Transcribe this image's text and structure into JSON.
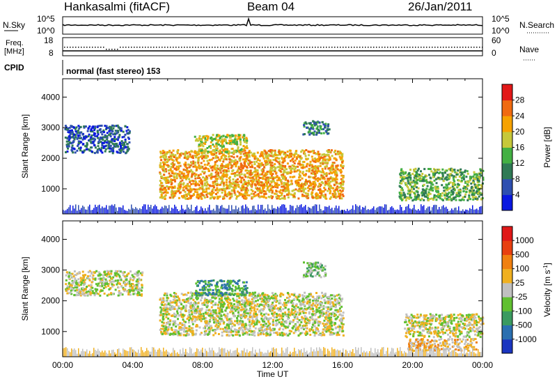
{
  "header": {
    "radar": "Hankasalmi (fitACF)",
    "beam": "Beam 04",
    "date": "26/Jan/2011"
  },
  "strips": {
    "nsky_label": "N.Sky",
    "nsky_ticks": [
      "10^5",
      "10^0"
    ],
    "nsearch_label": "N.Search",
    "nsearch_ticks": [
      "10^5",
      "10^0"
    ],
    "freq_label_line1": "Freq.",
    "freq_label_line2": "[MHz]",
    "freq_ticks": [
      "18",
      "8"
    ],
    "nave_label": "Nave",
    "nave_ticks": [
      "60",
      "0"
    ],
    "cpid_label": "CPID",
    "cpid_value": "normal (fast stereo) 153"
  },
  "chart_data": [
    {
      "type": "heatmap",
      "name": "power-panel",
      "ylabel": "Slant Range [km]",
      "yticks": [
        1000,
        2000,
        3000,
        4000
      ],
      "ylim": [
        180,
        4600
      ],
      "xlim": [
        0,
        24
      ],
      "colorbar": {
        "label": "Power [dB]",
        "ticks": [
          "4",
          "8",
          "12",
          "16",
          "20",
          "24",
          "28"
        ],
        "colors": [
          "#0a18e0",
          "#2e4fb0",
          "#2f7a55",
          "#43b043",
          "#c6c83a",
          "#f6a200",
          "#f06a10",
          "#e21818"
        ]
      },
      "regions": [
        {
          "t0": 0.1,
          "t1": 3.8,
          "r0": 2200,
          "r1": 3100,
          "level": 1
        },
        {
          "t0": 5.5,
          "t1": 16.0,
          "r0": 700,
          "r1": 2300,
          "level": 5
        },
        {
          "t0": 7.5,
          "t1": 10.5,
          "r0": 2200,
          "r1": 2800,
          "level": 4
        },
        {
          "t0": 13.7,
          "t1": 15.2,
          "r0": 2800,
          "r1": 3250,
          "level": 2
        },
        {
          "t0": 19.2,
          "t1": 24.0,
          "r0": 650,
          "r1": 1700,
          "level": 3
        }
      ]
    },
    {
      "type": "heatmap",
      "name": "velocity-panel",
      "ylabel": "Slant Range [km]",
      "xlabel": "Time UT",
      "yticks": [
        1000,
        2000,
        3000,
        4000
      ],
      "ylim": [
        180,
        4600
      ],
      "xlim": [
        0,
        24
      ],
      "xticks": [
        "00:00",
        "04:00",
        "08:00",
        "12:00",
        "16:00",
        "20:00",
        "00:00"
      ],
      "colorbar": {
        "label": "Velocity [m s",
        "label_sup": "-1",
        "label_end": "]",
        "ticks": [
          "1000",
          "500",
          "100",
          "25",
          "-25",
          "-100",
          "-500",
          "-1000"
        ],
        "colors": [
          "#1a35c0",
          "#2a6fb0",
          "#3a9a60",
          "#60c030",
          "#c0c0c0",
          "#f0b020",
          "#f08010",
          "#e84010",
          "#e01818"
        ]
      },
      "regions": [
        {
          "t0": 0.1,
          "t1": 4.5,
          "r0": 2200,
          "r1": 3000,
          "level": 4
        },
        {
          "t0": 5.5,
          "t1": 16.0,
          "r0": 900,
          "r1": 2300,
          "level": 4
        },
        {
          "t0": 7.5,
          "t1": 10.5,
          "r0": 2200,
          "r1": 2700,
          "level": 2
        },
        {
          "t0": 13.7,
          "t1": 15.0,
          "r0": 2800,
          "r1": 3300,
          "level": 3
        },
        {
          "t0": 19.5,
          "t1": 24.0,
          "r0": 850,
          "r1": 1600,
          "level": 4
        },
        {
          "t0": 19.7,
          "t1": 23.6,
          "r0": 400,
          "r1": 800,
          "level": 5
        }
      ]
    }
  ]
}
